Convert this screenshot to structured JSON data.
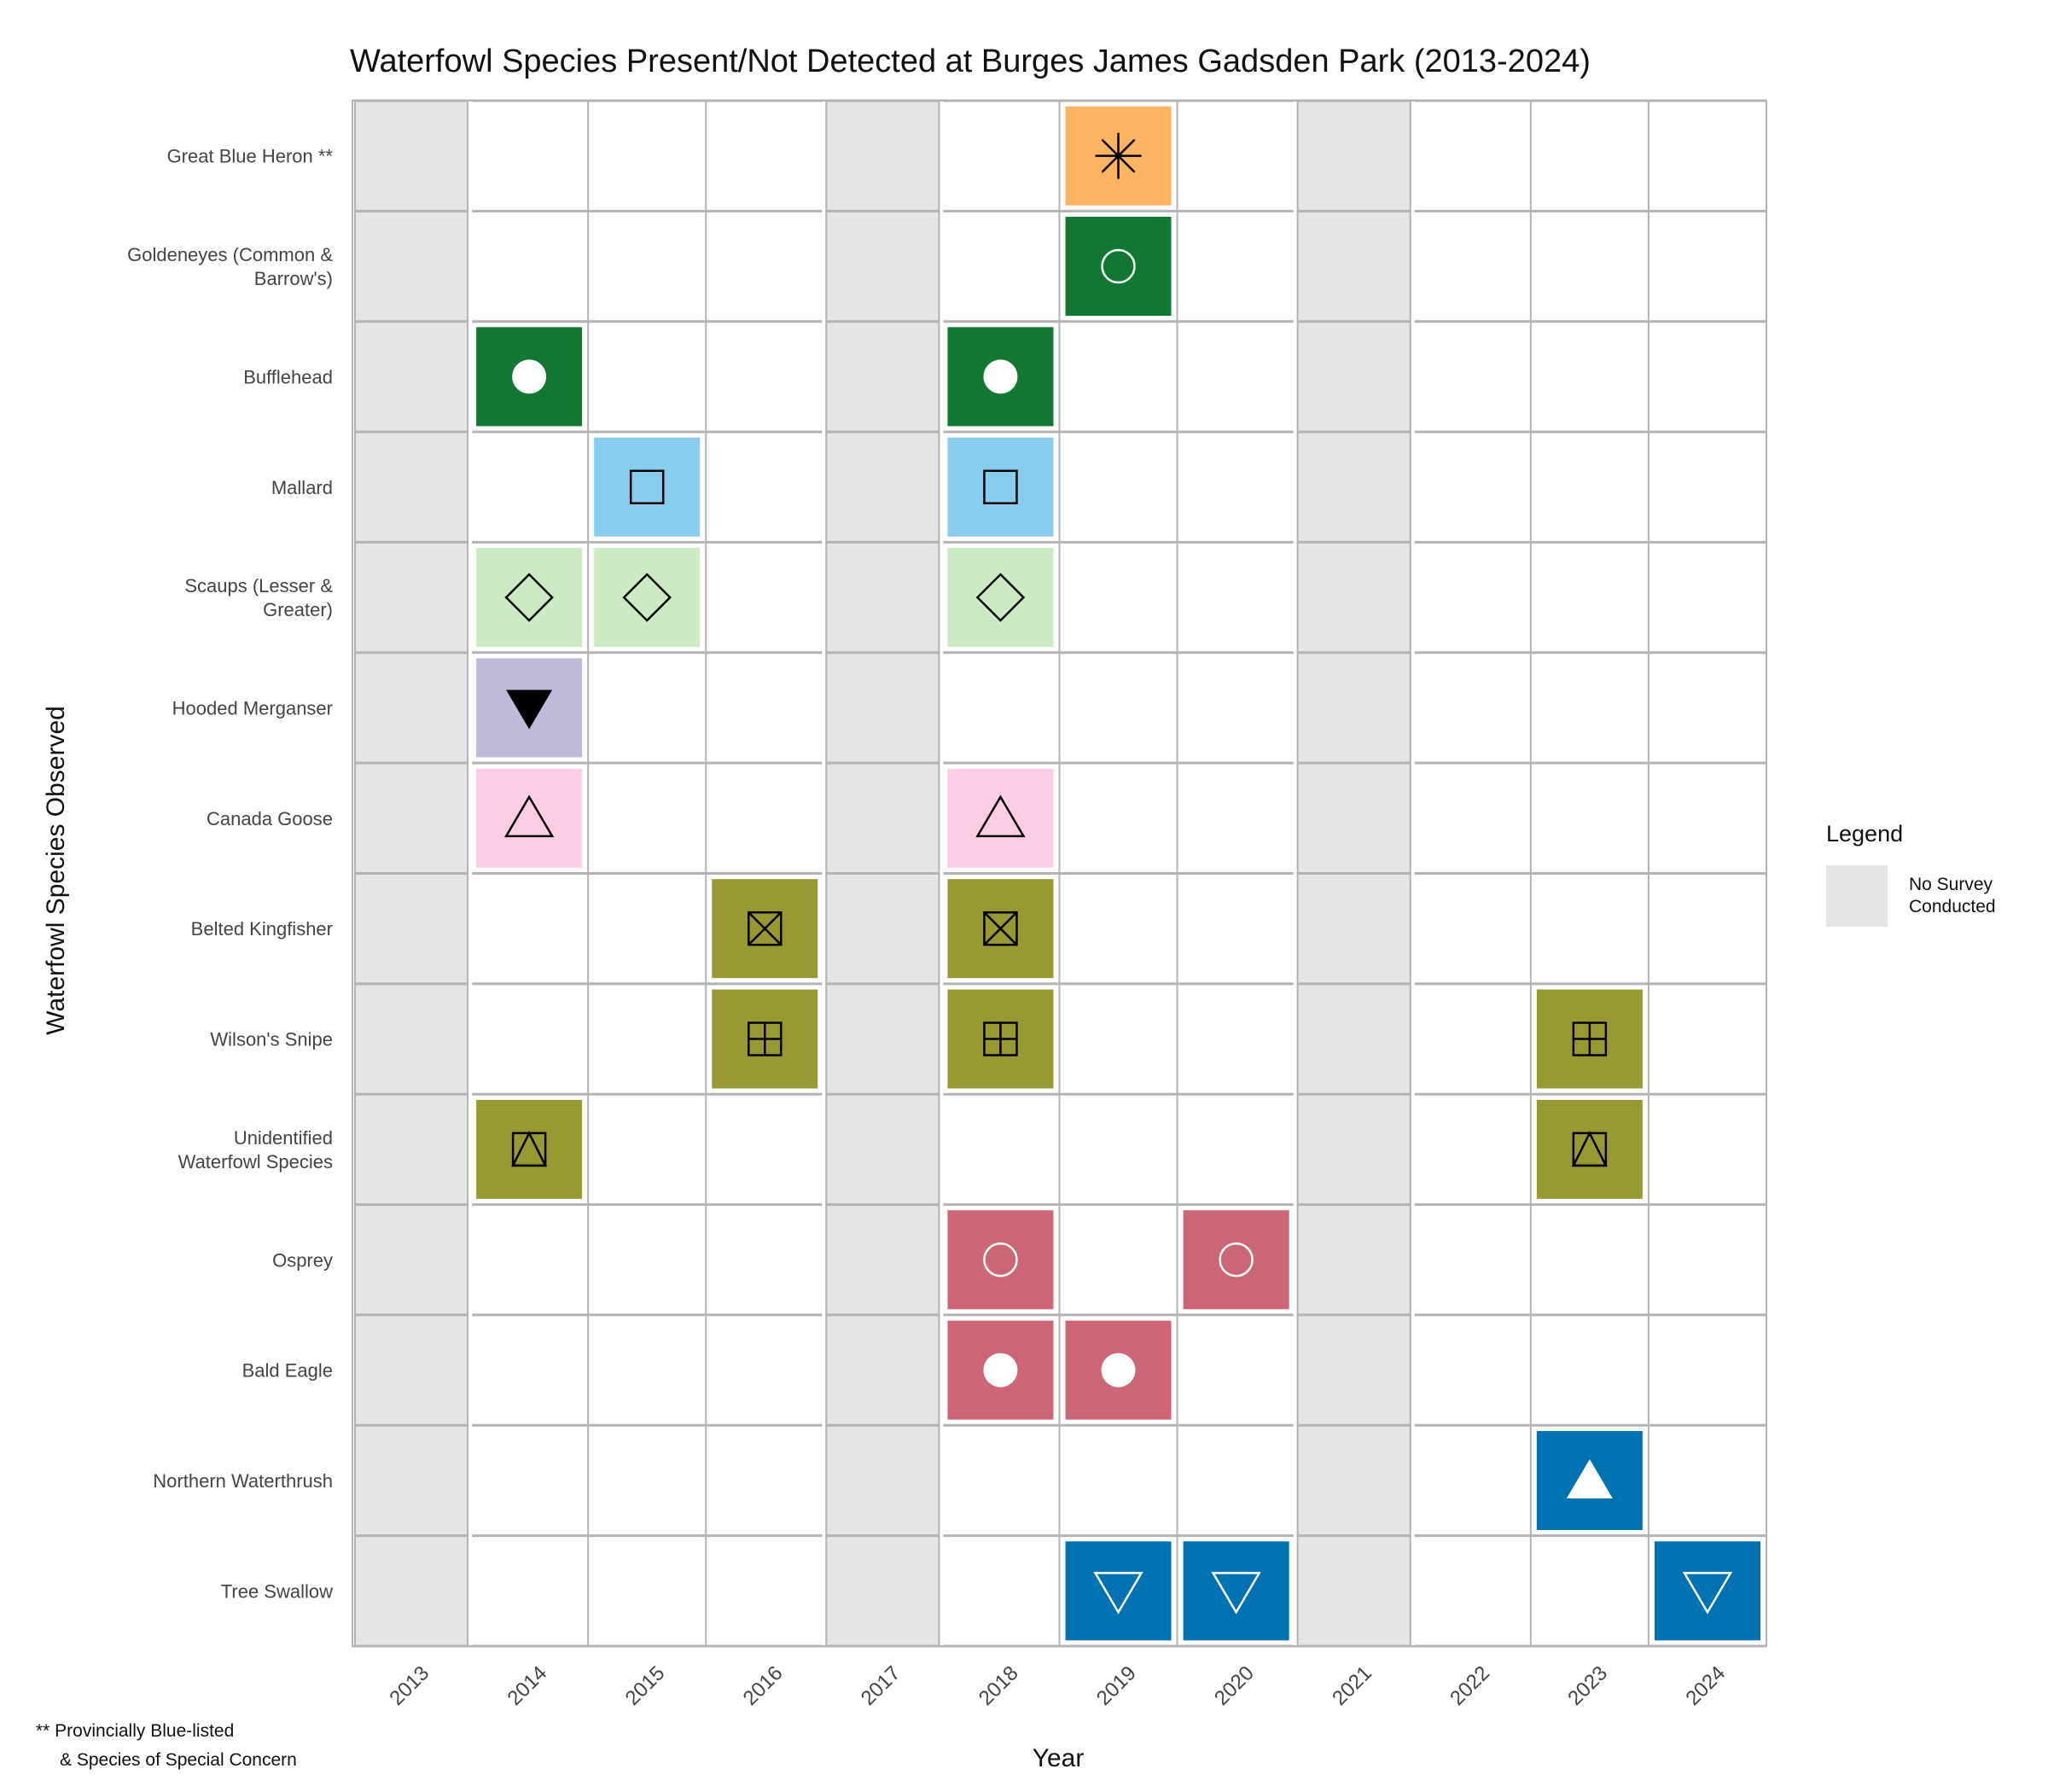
{
  "chart_data": {
    "type": "heatmap",
    "title": "Waterfowl Species Present/Not Detected at Burges James Gadsden Park (2013-2024)",
    "xlabel": "Year",
    "ylabel": "Waterfowl Species Observed",
    "years": [
      "2013",
      "2014",
      "2015",
      "2016",
      "2017",
      "2018",
      "2019",
      "2020",
      "2021",
      "2022",
      "2023",
      "2024"
    ],
    "no_survey_years": [
      "2013",
      "2017",
      "2021"
    ],
    "species": [
      {
        "label_lines": [
          "Great Blue Heron **"
        ],
        "color": "#FDB462",
        "marker": "asterisk",
        "marker_color": "#000000",
        "years": [
          "2019"
        ]
      },
      {
        "label_lines": [
          "Goldeneyes (Common &",
          "Barrow's)"
        ],
        "color": "#117733",
        "marker": "circle-open",
        "marker_color": "#ffffff",
        "years": [
          "2019"
        ]
      },
      {
        "label_lines": [
          "Bufflehead"
        ],
        "color": "#117733",
        "marker": "circle-filled",
        "marker_color": "#ffffff",
        "years": [
          "2014",
          "2018"
        ]
      },
      {
        "label_lines": [
          "Mallard"
        ],
        "color": "#88CCEE",
        "marker": "square-open",
        "marker_color": "#000000",
        "years": [
          "2015",
          "2018"
        ]
      },
      {
        "label_lines": [
          "Scaups (Lesser &",
          "Greater)"
        ],
        "color": "#CCEBC5",
        "marker": "diamond-open",
        "marker_color": "#000000",
        "years": [
          "2014",
          "2015",
          "2018"
        ]
      },
      {
        "label_lines": [
          "Hooded Merganser"
        ],
        "color": "#BEBADA",
        "marker": "triangle-down-filled",
        "marker_color": "#000000",
        "years": [
          "2014"
        ]
      },
      {
        "label_lines": [
          "Canada Goose"
        ],
        "color": "#FCCDE5",
        "marker": "triangle-up-open",
        "marker_color": "#000000",
        "years": [
          "2014",
          "2018"
        ]
      },
      {
        "label_lines": [
          "Belted Kingfisher"
        ],
        "color": "#999933",
        "marker": "square-cross",
        "marker_color": "#000000",
        "years": [
          "2016",
          "2018"
        ]
      },
      {
        "label_lines": [
          "Wilson's Snipe"
        ],
        "color": "#999933",
        "marker": "square-plus",
        "marker_color": "#000000",
        "years": [
          "2016",
          "2018",
          "2023"
        ]
      },
      {
        "label_lines": [
          "Unidentified",
          "Waterfowl Species"
        ],
        "color": "#999933",
        "marker": "square-triangle",
        "marker_color": "#000000",
        "years": [
          "2014",
          "2023"
        ]
      },
      {
        "label_lines": [
          "Osprey"
        ],
        "color": "#CC6677",
        "marker": "circle-open",
        "marker_color": "#ffffff",
        "years": [
          "2018",
          "2020"
        ]
      },
      {
        "label_lines": [
          "Bald Eagle"
        ],
        "color": "#CC6677",
        "marker": "circle-filled",
        "marker_color": "#ffffff",
        "years": [
          "2018",
          "2019"
        ]
      },
      {
        "label_lines": [
          "Northern Waterthrush"
        ],
        "color": "#0072B2",
        "marker": "triangle-up-filled",
        "marker_color": "#ffffff",
        "years": [
          "2023"
        ]
      },
      {
        "label_lines": [
          "Tree Swallow"
        ],
        "color": "#0072B2",
        "marker": "triangle-down-open",
        "marker_color": "#ffffff",
        "years": [
          "2019",
          "2020",
          "2024"
        ]
      }
    ],
    "colors": {
      "no_survey": "#E5E5E5",
      "grid": "#B3B3B3"
    },
    "legend": {
      "title": "Legend",
      "position": "right",
      "entries": [
        {
          "label_lines": [
            "No Survey",
            "Conducted"
          ],
          "color": "#E5E5E5"
        }
      ]
    },
    "note_lines": [
      "** Provincially Blue-listed",
      "& Species of Special Concern"
    ],
    "grid": true
  }
}
